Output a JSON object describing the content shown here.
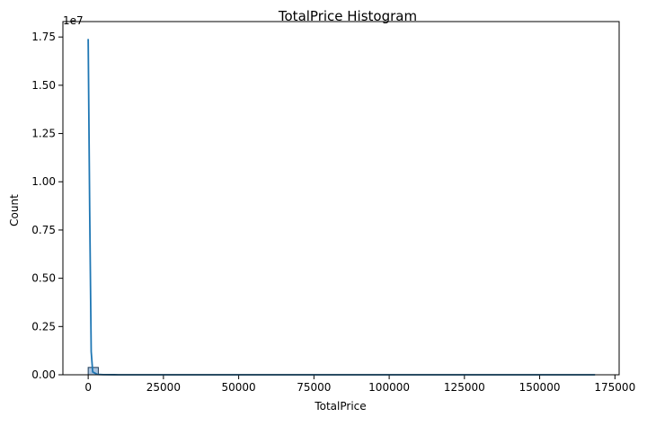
{
  "chart_data": {
    "type": "bar",
    "title": "TotalPrice Histogram",
    "xlabel": "TotalPrice",
    "ylabel": "Count",
    "y_offset_label": "1e7",
    "xlim": [
      -8400,
      176400
    ],
    "ylim": [
      0,
      18300000
    ],
    "x_ticks": [
      0,
      25000,
      50000,
      75000,
      100000,
      125000,
      150000,
      175000
    ],
    "y_ticks": [
      0,
      2500000,
      5000000,
      7500000,
      10000000,
      12500000,
      15000000,
      17500000
    ],
    "x_tick_labels": [
      "0",
      "25000",
      "50000",
      "75000",
      "100000",
      "125000",
      "150000",
      "175000"
    ],
    "y_tick_labels": [
      "0.00",
      "0.25",
      "0.50",
      "0.75",
      "1.00",
      "1.25",
      "1.50",
      "1.75"
    ],
    "bins": [
      {
        "x0": 0,
        "x1": 3370,
        "count": 380000
      },
      {
        "x0": 3370,
        "x1": 168400,
        "count": 0
      }
    ],
    "kde": {
      "x": [
        0,
        500,
        1000,
        1500,
        3000,
        5000,
        10000,
        20000,
        50000,
        100000,
        150000,
        168400
      ],
      "y": [
        17400000,
        8500000,
        1200000,
        150000,
        20000,
        5000,
        1000,
        0,
        0,
        0,
        0,
        0
      ]
    },
    "colors": {
      "bar_fill": "#a9c3df",
      "bar_stroke": "#1f3b57",
      "kde_line": "#1f77b4",
      "axis": "#000000"
    },
    "grid": false,
    "legend": "none"
  }
}
